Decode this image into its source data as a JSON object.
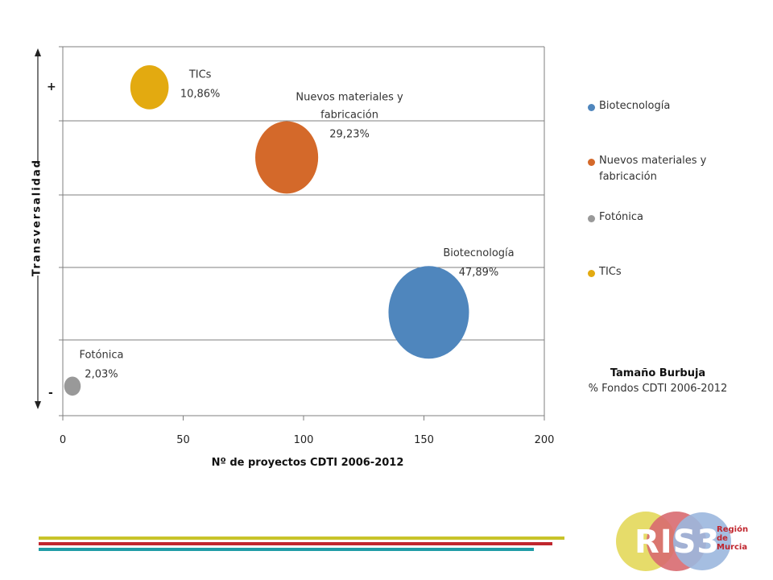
{
  "chart_data": {
    "type": "bubble",
    "xlabel": "Nº de proyectos CDTI 2006-2012",
    "ylabel": "Transversalidad",
    "xlim": [
      0,
      200
    ],
    "x_ticks": [
      0,
      50,
      100,
      150,
      200
    ],
    "y_high_marker": "+",
    "y_low_marker": "-",
    "grid": true,
    "legend_position": "right",
    "bubble_size_title": "Tamaño Burbuja",
    "bubble_size_subtitle": "% Fondos CDTI 2006-2012",
    "series": [
      {
        "name": "Biotecnología",
        "x": 152,
        "y": 1.4,
        "size": 47.89,
        "size_label": "47,89%",
        "color": "#4f86bd"
      },
      {
        "name": "Nuevos materiales y fabricación",
        "x": 93,
        "y": 3.5,
        "size": 29.23,
        "size_label": "29,23%",
        "color": "#d4692a"
      },
      {
        "name": "Fotónica",
        "x": 4,
        "y": 0.4,
        "size": 2.03,
        "size_label": "2,03%",
        "color": "#999999"
      },
      {
        "name": "TICs",
        "x": 36,
        "y": 4.45,
        "size": 10.86,
        "size_label": "10,86%",
        "color": "#e3aa10"
      }
    ]
  },
  "footer": {
    "bar_colors": [
      "#c8c32a",
      "#c0262e",
      "#1f9ca6"
    ]
  },
  "logo": {
    "text": "RIS3",
    "region_line1": "Región",
    "region_line2": "de",
    "region_line3": "Murcia",
    "circle_colors": [
      "#e6dc6a",
      "#d86a70",
      "#9bb7de"
    ]
  }
}
